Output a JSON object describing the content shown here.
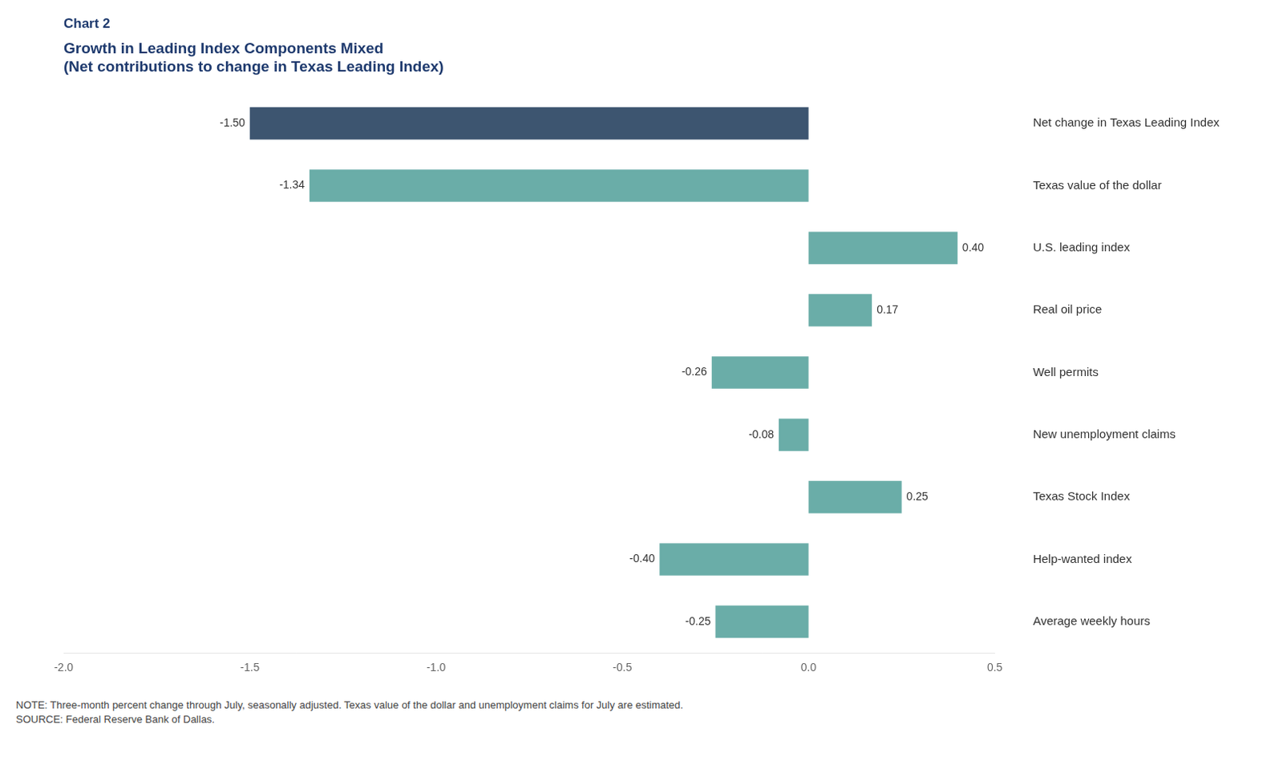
{
  "chart_data": {
    "type": "bar",
    "orientation": "horizontal",
    "title": "Chart 2",
    "subtitle": [
      "Growth in Leading Index Components Mixed",
      "(Net contributions to change in Texas Leading Index)"
    ],
    "categories": [
      "Net change in Texas Leading Index",
      "Texas value of the dollar",
      "U.S. leading index",
      "Real oil price",
      "Well permits",
      "New unemployment claims",
      "Texas Stock Index",
      "Help-wanted index",
      "Average weekly hours"
    ],
    "values": [
      -1.5,
      -1.34,
      0.4,
      0.17,
      -0.26,
      -0.08,
      0.25,
      -0.4,
      -0.25
    ],
    "value_labels": [
      "-1.50",
      "-1.34",
      "0.40",
      "0.17",
      "-0.26",
      "-0.08",
      "0.25",
      "-0.40",
      "-0.25"
    ],
    "data_labels": true,
    "colors": [
      "#3d5570",
      "#6aada8",
      "#6aada8",
      "#6aada8",
      "#6aada8",
      "#6aada8",
      "#6aada8",
      "#6aada8",
      "#6aada8"
    ],
    "xlim": [
      -2.0,
      0.5
    ],
    "xticks": [
      {
        "value": -2.0,
        "label": "-2.0"
      },
      {
        "value": -1.5,
        "label": "-1.5"
      },
      {
        "value": -1.0,
        "label": "-1.0"
      },
      {
        "value": -0.5,
        "label": "-0.5"
      },
      {
        "value": 0.0,
        "label": "0.0"
      },
      {
        "value": 0.5,
        "label": "0.5"
      }
    ],
    "grid": false,
    "annotations": [
      "NOTE: Three-month percent change through July, seasonally adjusted. Texas value of the dollar and unemployment claims for July are estimated.",
      "SOURCE: Federal Reserve Bank of Dallas."
    ]
  }
}
